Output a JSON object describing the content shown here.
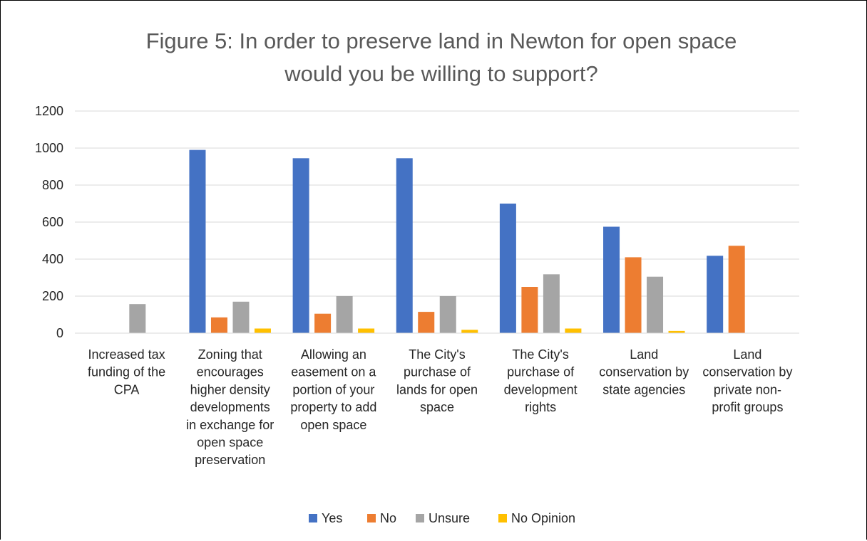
{
  "chart_data": {
    "type": "bar",
    "title_lines": [
      "Figure 5: In order to preserve land in Newton for open space",
      "would you be willing to support?"
    ],
    "categories": [
      [
        "Increased tax",
        "funding of the",
        "CPA"
      ],
      [
        "Zoning that",
        "encourages",
        "higher density",
        "developments",
        "in exchange for",
        "open space",
        "preservation"
      ],
      [
        "Allowing an",
        "easement on a",
        "portion of your",
        "property to add",
        "open space"
      ],
      [
        "The City's",
        "purchase of",
        "lands for open",
        "space"
      ],
      [
        "The City's",
        "purchase of",
        "development",
        "rights"
      ],
      [
        "Land",
        "conservation by",
        "state agencies"
      ],
      [
        "Land",
        "conservation by",
        "private non-",
        "profit groups"
      ]
    ],
    "series": [
      {
        "name": "Yes",
        "color": "#4472C4",
        "values": [
          0,
          990,
          945,
          945,
          700,
          575,
          418
        ]
      },
      {
        "name": "No",
        "color": "#ED7D31",
        "values": [
          0,
          85,
          105,
          115,
          250,
          410,
          472
        ]
      },
      {
        "name": "Unsure",
        "color": "#A5A5A5",
        "values": [
          157,
          170,
          200,
          200,
          318,
          305,
          0
        ]
      },
      {
        "name": "No Opinion",
        "color": "#FFC000",
        "values": [
          0,
          25,
          25,
          18,
          25,
          12,
          0
        ]
      }
    ],
    "ylim": [
      0,
      1200
    ],
    "yticks": [
      "0",
      "200",
      "400",
      "600",
      "800",
      "1000",
      "1200"
    ],
    "grid": true,
    "legend_position": "bottom"
  }
}
